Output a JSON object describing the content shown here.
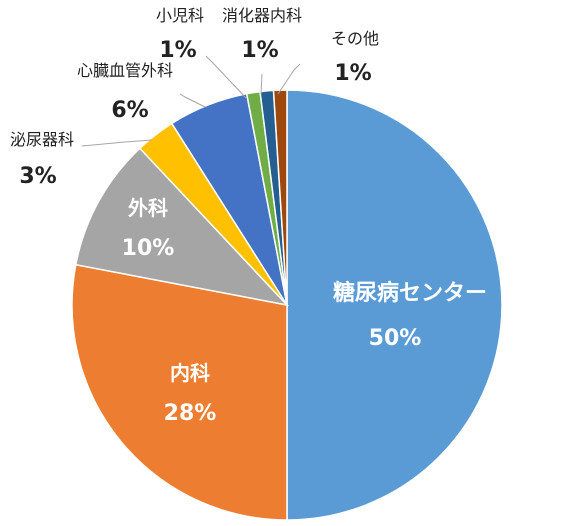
{
  "chart_data": {
    "type": "pie",
    "title": "",
    "series": [
      {
        "slices": [
          {
            "label": "糖尿病センター",
            "value": 50,
            "pct_label": "50%",
            "color": "#5b9bd5",
            "label_position": "inside"
          },
          {
            "label": "内科",
            "value": 28,
            "pct_label": "28%",
            "color": "#ed7d31",
            "label_position": "inside"
          },
          {
            "label": "外科",
            "value": 10,
            "pct_label": "10%",
            "color": "#a5a5a5",
            "label_position": "inside"
          },
          {
            "label": "泌尿器科",
            "value": 3,
            "pct_label": "3%",
            "color": "#ffc000",
            "label_position": "outside"
          },
          {
            "label": "心臓血管外科",
            "value": 6,
            "pct_label": "6%",
            "color": "#4472c4",
            "label_position": "outside"
          },
          {
            "label": "小児科",
            "value": 1,
            "pct_label": "1%",
            "color": "#70ad47",
            "label_position": "outside"
          },
          {
            "label": "消化器内科",
            "value": 1,
            "pct_label": "1%",
            "color": "#255e91",
            "label_position": "outside"
          },
          {
            "label": "その他",
            "value": 1,
            "pct_label": "1%",
            "color": "#9e480e",
            "label_position": "outside"
          }
        ]
      }
    ],
    "legend": "none",
    "leader_lines": true
  }
}
